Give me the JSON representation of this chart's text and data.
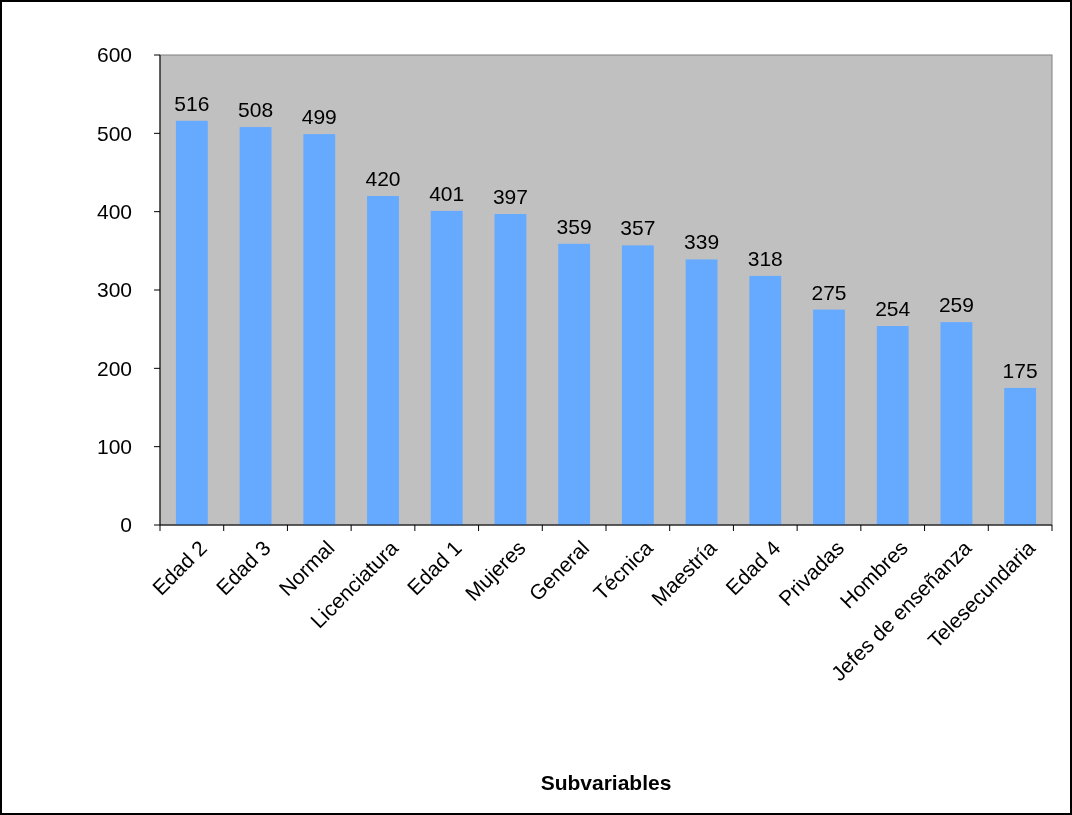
{
  "chart_data": {
    "type": "bar",
    "xlabel": "Subvariables",
    "categories": [
      "Edad 2",
      "Edad 3",
      "Normal",
      "Licenciatura",
      "Edad 1",
      "Mujeres",
      "General",
      "Técnica",
      "Maestría",
      "Edad 4",
      "Privadas",
      "Hombres",
      "Jefes de enseñanza",
      "Telesecundaria"
    ],
    "values": [
      516,
      508,
      499,
      420,
      401,
      397,
      359,
      357,
      339,
      318,
      275,
      254,
      259,
      175
    ],
    "color": "#66aaff",
    "ylim": [
      0,
      600
    ],
    "yticks": [
      0,
      100,
      200,
      300,
      400,
      500,
      600
    ],
    "grid": false,
    "data_labels": true
  }
}
